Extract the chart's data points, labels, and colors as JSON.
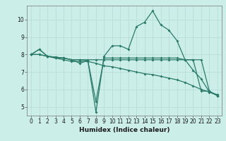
{
  "xlabel": "Humidex (Indice chaleur)",
  "ylabel": "",
  "background_color": "#cceee8",
  "grid_color": "#b8ddd8",
  "line_color": "#2a7a6a",
  "xlim": [
    -0.5,
    23.5
  ],
  "ylim": [
    4.5,
    10.8
  ],
  "yticks": [
    5,
    6,
    7,
    8,
    9,
    10
  ],
  "xticks": [
    0,
    1,
    2,
    3,
    4,
    5,
    6,
    7,
    8,
    9,
    10,
    11,
    12,
    13,
    14,
    15,
    16,
    17,
    18,
    19,
    20,
    21,
    22,
    23
  ],
  "line1_x": [
    0,
    1,
    2,
    3,
    4,
    5,
    6,
    7,
    8,
    9,
    10,
    11,
    12,
    13,
    14,
    15,
    16,
    17,
    18,
    19,
    20,
    21,
    22,
    23
  ],
  "line1_y": [
    8.0,
    8.3,
    7.9,
    7.85,
    7.8,
    7.7,
    7.7,
    7.65,
    4.7,
    7.9,
    8.5,
    8.5,
    8.3,
    9.6,
    9.85,
    10.5,
    9.7,
    9.4,
    8.8,
    7.7,
    7.1,
    6.6,
    5.85,
    5.7
  ],
  "line2_x": [
    0,
    1,
    2,
    3,
    4,
    5,
    6,
    7,
    8,
    9,
    10,
    11,
    12,
    13,
    14,
    15,
    16,
    17,
    18,
    19,
    20,
    21,
    22,
    23
  ],
  "line2_y": [
    8.0,
    8.3,
    7.9,
    7.85,
    7.8,
    7.7,
    7.5,
    7.65,
    5.3,
    7.8,
    7.8,
    7.8,
    7.8,
    7.8,
    7.8,
    7.8,
    7.8,
    7.8,
    7.8,
    7.7,
    7.7,
    7.7,
    5.9,
    5.65
  ],
  "line3_x": [
    0,
    1,
    2,
    3,
    4,
    5,
    6,
    7,
    8,
    9,
    10,
    11,
    12,
    13,
    14,
    15,
    16,
    17,
    18,
    19,
    20,
    21,
    22,
    23
  ],
  "line3_y": [
    8.0,
    8.0,
    7.9,
    7.8,
    7.8,
    7.7,
    7.7,
    7.7,
    7.7,
    7.7,
    7.7,
    7.7,
    7.7,
    7.7,
    7.7,
    7.7,
    7.7,
    7.7,
    7.7,
    7.7,
    7.7,
    5.9,
    5.9,
    5.65
  ],
  "line4_x": [
    0,
    1,
    2,
    3,
    4,
    5,
    6,
    7,
    8,
    9,
    10,
    11,
    12,
    13,
    14,
    15,
    16,
    17,
    18,
    19,
    20,
    21,
    22,
    23
  ],
  "line4_y": [
    8.0,
    8.0,
    7.9,
    7.8,
    7.7,
    7.6,
    7.6,
    7.6,
    7.5,
    7.35,
    7.3,
    7.2,
    7.1,
    7.0,
    6.9,
    6.85,
    6.75,
    6.65,
    6.55,
    6.4,
    6.2,
    6.0,
    5.85,
    5.65
  ]
}
